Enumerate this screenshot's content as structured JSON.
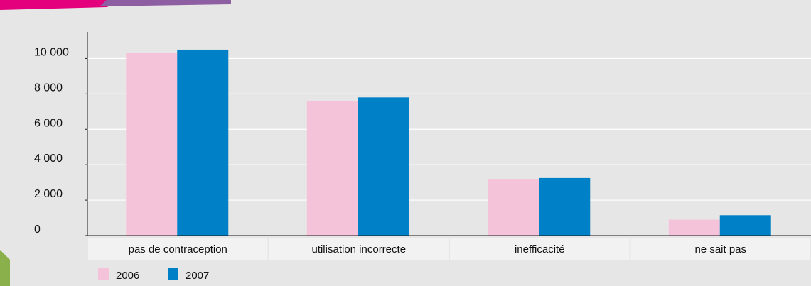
{
  "colors": {
    "background": "#e6e6e6",
    "category_band": "#f2f2f2",
    "grid": "#ffffff",
    "axis": "#1a1a1a",
    "series_2006": "#f5c3d9",
    "series_2007": "#0080c6",
    "banner_pink": "#e4007c",
    "banner_purple": "#8e5ea2",
    "corner_green": "#8ab04b"
  },
  "chart_data": {
    "type": "bar",
    "title": "",
    "xlabel": "",
    "ylabel": "",
    "categories": [
      "pas de contraception",
      "utilisation incorrecte",
      "inefficacité",
      "ne sait pas"
    ],
    "series": [
      {
        "name": "2006",
        "color": "#f5c3d9",
        "values": [
          10300,
          7600,
          3200,
          900
        ]
      },
      {
        "name": "2007",
        "color": "#0080c6",
        "values": [
          10500,
          7800,
          3250,
          1150
        ]
      }
    ],
    "ylim": [
      0,
      11500
    ],
    "yticks": [
      0,
      2000,
      4000,
      6000,
      8000,
      10000
    ],
    "ytick_labels": [
      "0",
      "2 000",
      "4 000",
      "6 000",
      "8 000",
      "10 000"
    ],
    "grid": true,
    "legend": "bottom-left"
  }
}
